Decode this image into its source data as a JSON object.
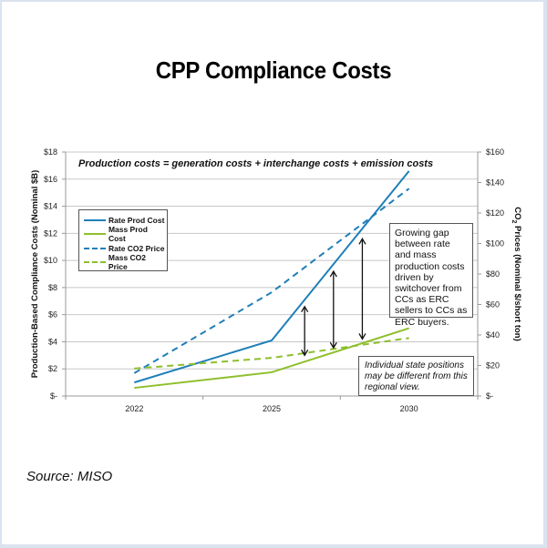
{
  "page": {
    "title": "CPP Compliance Costs",
    "source": "Source: MISO",
    "colors": {
      "rate": "#1f7fb8",
      "mass": "#8dbf2b",
      "frame": "#dbe3ef",
      "grid": "#c8c8c8"
    }
  },
  "chart_data": {
    "type": "line",
    "title": "CPP Compliance Costs",
    "subtitle": "Production costs = generation costs + interchange costs + emission costs",
    "categories": [
      "2022",
      "2025",
      "2030"
    ],
    "xlabel": "",
    "ylabel": "Production-Based Compliance Costs (Nominal $B)",
    "y2label_prefix": "CO",
    "y2label_sub": "2",
    "y2label_suffix": " Prices (Nominal $/short ton)",
    "ylim": [
      0,
      18
    ],
    "y2lim": [
      0,
      160
    ],
    "yticks": [
      0,
      2,
      4,
      6,
      8,
      10,
      12,
      14,
      16,
      18
    ],
    "ytick_labels": [
      "$-",
      "$2",
      "$4",
      "$6",
      "$8",
      "$10",
      "$12",
      "$14",
      "$16",
      "$18"
    ],
    "y2ticks": [
      0,
      20,
      40,
      60,
      80,
      100,
      120,
      140,
      160
    ],
    "y2tick_labels": [
      "$-",
      "$20",
      "$40",
      "$60",
      "$80",
      "$100",
      "$120",
      "$140",
      "$160"
    ],
    "grid": true,
    "legend_position": "upper-left",
    "series": [
      {
        "name": "Rate Prod Cost",
        "axis": "left",
        "style": "solid",
        "color": "#1f7fb8",
        "values": [
          1.0,
          4.1,
          16.6
        ]
      },
      {
        "name": "Mass Prod Cost",
        "axis": "left",
        "style": "solid",
        "color": "#8dbf2b",
        "values": [
          0.6,
          1.75,
          5.0
        ]
      },
      {
        "name": "Rate CO2 Price",
        "axis": "right",
        "style": "dashed",
        "color": "#1f7fb8",
        "values": [
          15,
          68,
          136
        ]
      },
      {
        "name": "Mass CO2 Price",
        "axis": "right",
        "style": "dashed",
        "color": "#8dbf2b",
        "values": [
          18,
          25,
          38
        ]
      }
    ],
    "gap_arrows": [
      {
        "x_between": [
          2025,
          2030
        ],
        "position": 0.24,
        "from": 3.0,
        "to": 6.6
      },
      {
        "x_between": [
          2025,
          2030
        ],
        "position": 0.45,
        "from": 3.55,
        "to": 9.2
      },
      {
        "x_between": [
          2025,
          2030
        ],
        "position": 0.66,
        "from": 4.2,
        "to": 11.6
      }
    ],
    "annotations": [
      "Growing gap between rate and mass production costs driven by switchover from CCs as ERC sellers to CCs as ERC buyers.",
      "Individual state positions may be different from this regional view."
    ]
  }
}
